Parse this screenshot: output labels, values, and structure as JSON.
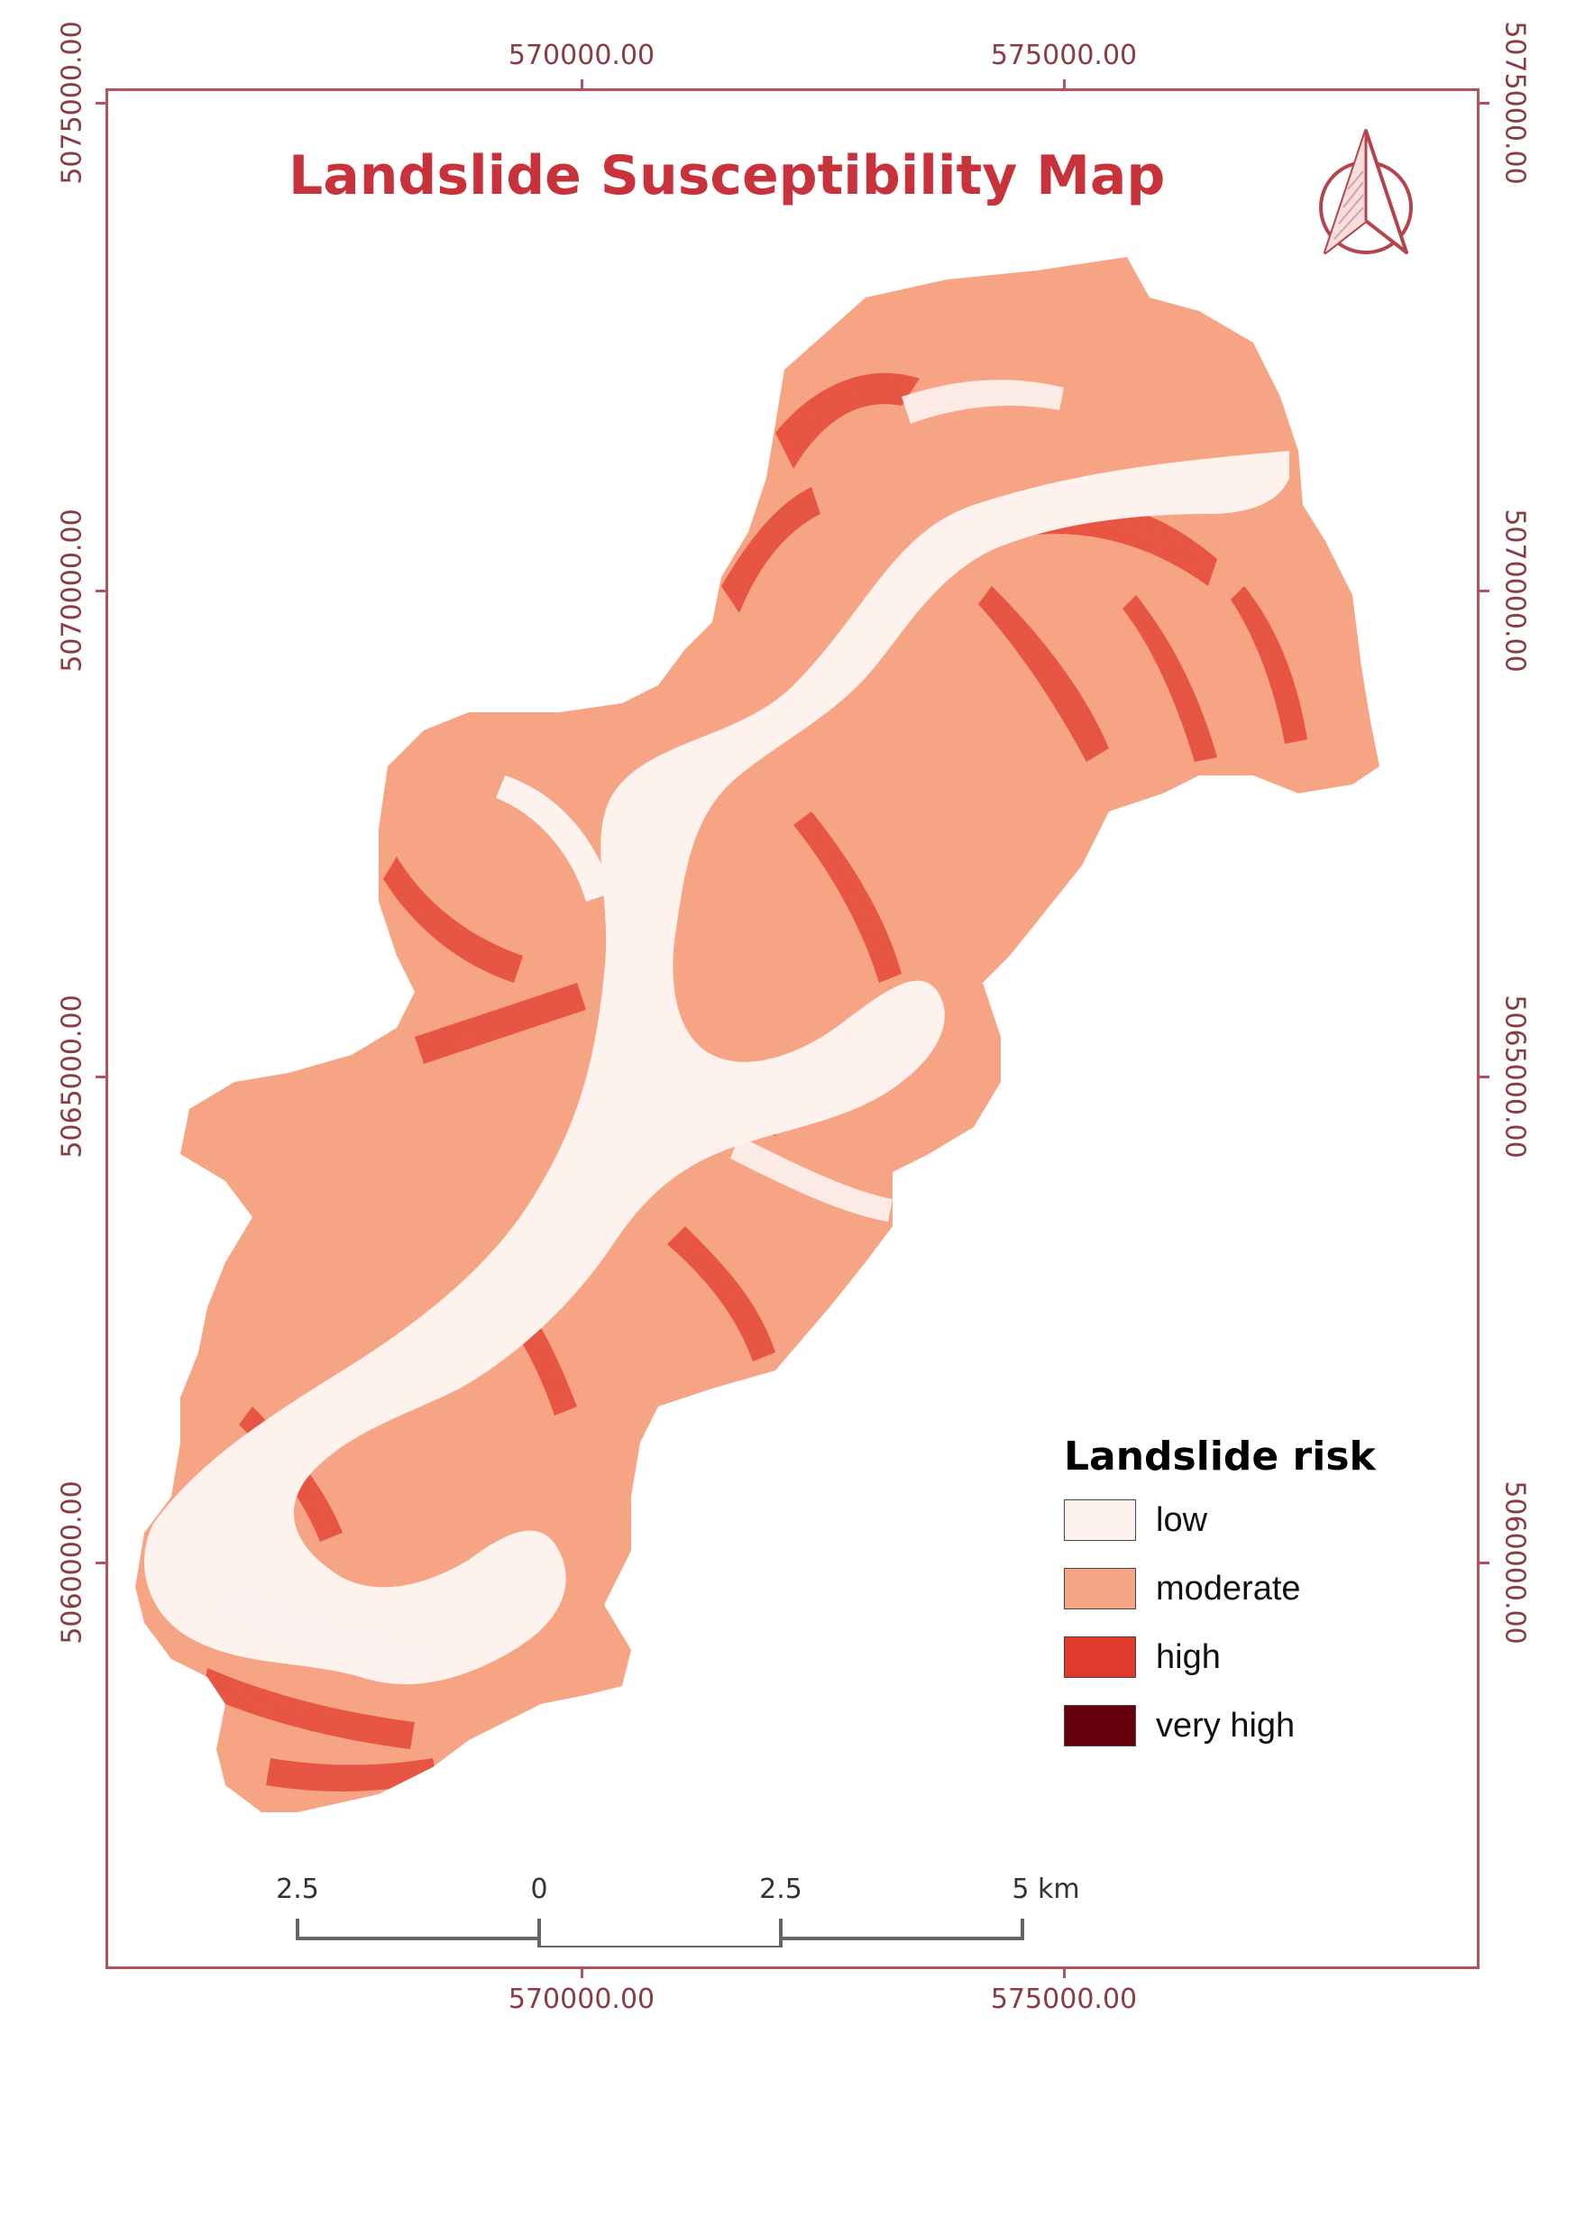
{
  "title": "Landslide Susceptibility Map",
  "coordinates": {
    "x_top": [
      "570000.00",
      "575000.00"
    ],
    "x_bottom": [
      "570000.00",
      "575000.00"
    ],
    "y_left": [
      "5075000.00",
      "5070000.00",
      "5065000.00",
      "5060000.00"
    ],
    "y_right": [
      "5075000.00",
      "5070000.00",
      "5065000.00",
      "5060000.00"
    ]
  },
  "legend": {
    "title": "Landslide risk",
    "items": [
      {
        "label": "low",
        "color": "#fdf2ee"
      },
      {
        "label": "moderate",
        "color": "#f6a585"
      },
      {
        "label": "high",
        "color": "#e13a2c"
      },
      {
        "label": "very high",
        "color": "#67000d"
      }
    ]
  },
  "scale_bar": {
    "labels": [
      "2.5",
      "0",
      "2.5",
      "5 km"
    ],
    "color": "#666666"
  },
  "colors": {
    "frame": "#b4545a",
    "title": "#c8323a",
    "coord_text": "#8a3c44",
    "north_arrow": "#b5454c"
  },
  "icons": {
    "north_arrow": "north-arrow-icon"
  }
}
